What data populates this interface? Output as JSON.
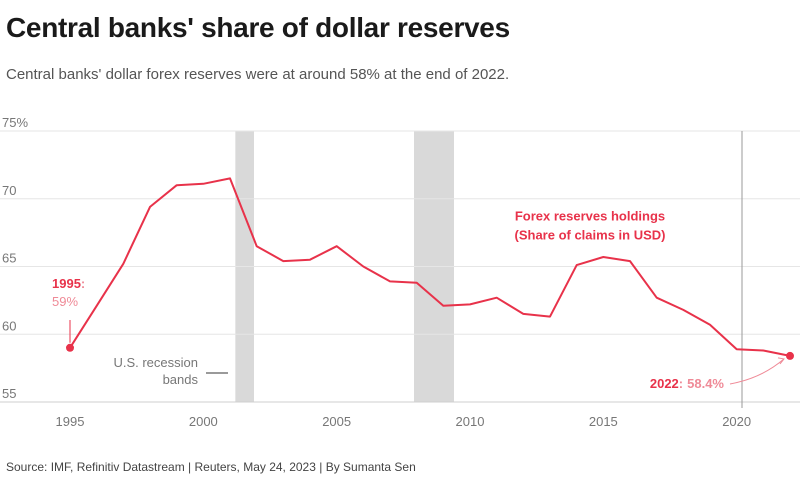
{
  "title": "Central banks' share of dollar reserves",
  "subtitle": "Central banks' dollar forex reserves were at around 58% at the end of 2022.",
  "source": "Source: IMF, Refinitiv Datastream | Reuters, May 24, 2023 | By Sumanta Sen",
  "colors": {
    "line": "#e8324a",
    "highlight_label": "#e8324a",
    "value_label": "#ef8a97",
    "recession_band": "#d9d9d9",
    "grid": "#e6e6e6",
    "axis_text": "#777777"
  },
  "chart_data": {
    "type": "line",
    "title": "Central banks' share of dollar reserves",
    "xlabel": "",
    "ylabel": "",
    "xlim": [
      1994.5,
      2022.5
    ],
    "ylim": [
      55,
      75
    ],
    "y_ticks": [
      55,
      60,
      65,
      70,
      75
    ],
    "y_tick_labels": [
      "55",
      "60",
      "65",
      "70",
      "75%"
    ],
    "x_ticks": [
      1995,
      2000,
      2005,
      2010,
      2015,
      2020
    ],
    "x_tick_labels": [
      "1995",
      "2000",
      "2005",
      "2010",
      "2015",
      "2020"
    ],
    "grid": true,
    "series": [
      {
        "name": "Forex reserves holdings (Share of claims in USD)",
        "x": [
          1995,
          1996,
          1997,
          1998,
          1999,
          2000,
          2001,
          2002,
          2003,
          2004,
          2005,
          2006,
          2007,
          2008,
          2009,
          2010,
          2011,
          2012,
          2013,
          2014,
          2015,
          2016,
          2017,
          2018,
          2019,
          2020,
          2021,
          2022
        ],
        "values": [
          59.0,
          62.1,
          65.2,
          69.4,
          71.0,
          71.1,
          71.5,
          66.5,
          65.4,
          65.5,
          66.5,
          65.0,
          63.9,
          63.8,
          62.1,
          62.2,
          62.7,
          61.5,
          61.3,
          65.1,
          65.7,
          65.4,
          62.7,
          61.8,
          60.7,
          58.9,
          58.8,
          58.4
        ]
      }
    ],
    "recession_bands": [
      {
        "start": 2001.2,
        "end": 2001.9
      },
      {
        "start": 2007.9,
        "end": 2009.4
      }
    ],
    "reference_line_x": 2020.2,
    "series_label_line1": "Forex reserves holdings",
    "series_label_line2": "(Share of claims in USD)",
    "recession_legend_line1": "U.S. recession",
    "recession_legend_line2": "bands",
    "start_annotation": {
      "year_label": "1995",
      "sep": ":",
      "value_label": "59%"
    },
    "end_annotation": {
      "year_label": "2022",
      "sep": ":",
      "value_label": "58.4%"
    }
  }
}
